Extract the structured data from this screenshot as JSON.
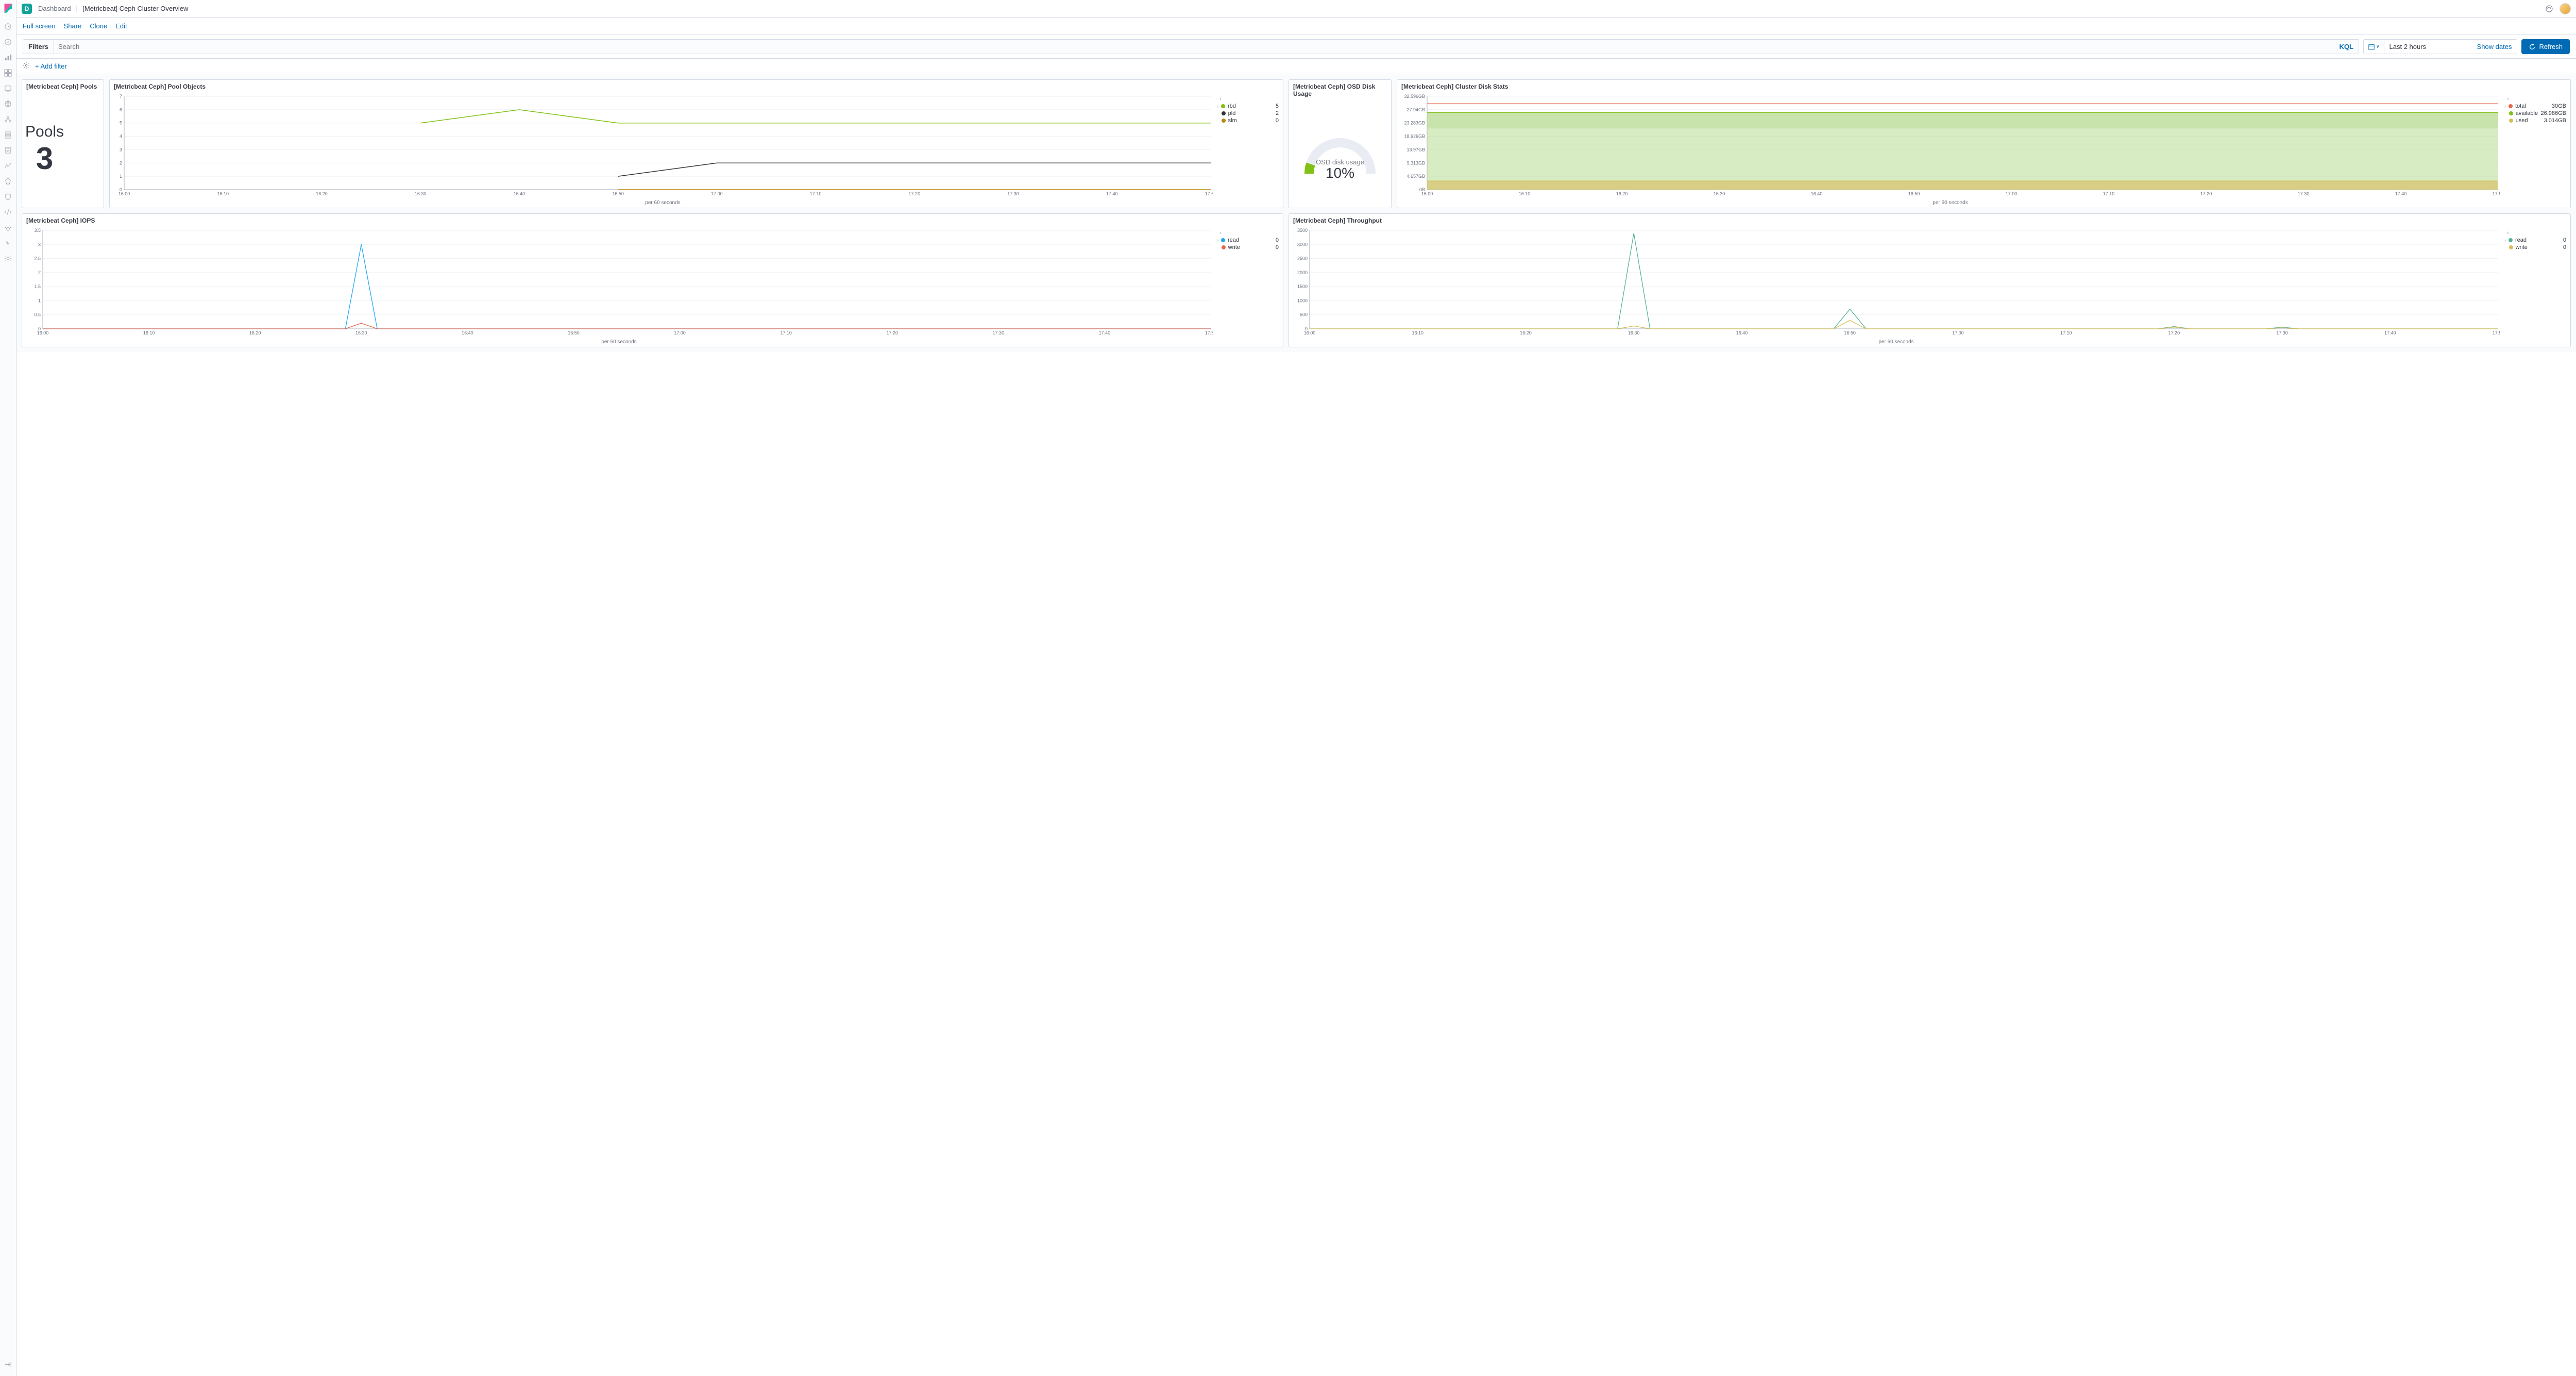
{
  "header": {
    "space_initial": "D",
    "breadcrumb_root": "Dashboard",
    "breadcrumb_current": "[Metricbeat] Ceph Cluster Overview"
  },
  "toolbar": {
    "fullscreen": "Full screen",
    "share": "Share",
    "clone": "Clone",
    "edit": "Edit"
  },
  "querybar": {
    "filters_label": "Filters",
    "placeholder": "Search",
    "kql": "KQL",
    "time_range": "Last 2 hours",
    "show_dates": "Show dates",
    "refresh": "Refresh"
  },
  "filterbar": {
    "add_filter": "+ Add filter"
  },
  "colors": {
    "accent": "#006bb4",
    "series_green": "#81c014",
    "series_dark": "#333333",
    "series_gold": "#b8860b",
    "series_blue": "#1ba9f5",
    "series_red": "#e7664c",
    "series_teal": "#54b399",
    "grid": "#eef2f7",
    "axis": "#a6adbb",
    "text_muted": "#69707d",
    "area_green": "#b8dd93",
    "area_amber": "#d9c776"
  },
  "shared_x": {
    "labels": [
      "16:00",
      "16:10",
      "16:20",
      "16:30",
      "16:40",
      "16:50",
      "17:00",
      "17:10",
      "17:20",
      "17:30",
      "17:40",
      "17:50"
    ],
    "interval_label": "per 60 seconds",
    "xmin": 0,
    "xmax": 11
  },
  "panel_pools": {
    "title": "[Metricbeat Ceph] Pools",
    "metric_label": "Pools",
    "metric_value": "3"
  },
  "panel_pool_objects": {
    "title": "[Metricbeat Ceph] Pool Objects",
    "ylim": [
      0,
      7
    ],
    "yticks": [
      0,
      1,
      2,
      3,
      4,
      5,
      6,
      7
    ],
    "legend": [
      {
        "name": "rbd",
        "value": "5",
        "color": "#81c014"
      },
      {
        "name": "pld",
        "value": "2",
        "color": "#333333"
      },
      {
        "name": "slm",
        "value": "0",
        "color": "#b8860b"
      }
    ],
    "series": {
      "rbd": [
        null,
        null,
        null,
        5,
        6,
        5,
        5,
        5,
        5,
        5,
        5,
        5
      ],
      "pld": [
        null,
        null,
        null,
        null,
        null,
        1,
        2,
        2,
        2,
        2,
        2,
        2
      ],
      "slm": [
        null,
        null,
        null,
        null,
        null,
        0,
        0,
        0,
        0,
        0,
        0,
        0
      ]
    }
  },
  "panel_osd": {
    "title": "[Metricbeat Ceph] OSD Disk Usage",
    "gauge_label": "OSD disk usage",
    "gauge_value": "10%",
    "gauge_pct": 10,
    "gauge_color": "#81c014",
    "gauge_track": "#e9edf3"
  },
  "panel_cluster_disk": {
    "title": "[Metricbeat Ceph] Cluster Disk Stats",
    "yticks": [
      "0B",
      "4.657GB",
      "9.313GB",
      "13.97GB",
      "18.626GB",
      "23.283GB",
      "27.94GB",
      "32.596GB"
    ],
    "legend": [
      {
        "name": "total",
        "value": "30GB",
        "color": "#e7664c"
      },
      {
        "name": "available",
        "value": "26.986GB",
        "color": "#81c014"
      },
      {
        "name": "used",
        "value": "3.014GB",
        "color": "#d6bf57"
      }
    ],
    "values": {
      "total": 30,
      "available": 26.986,
      "used": 3.014
    },
    "ymax_gb": 32.596
  },
  "panel_iops": {
    "title": "[Metricbeat Ceph] IOPS",
    "ylim": [
      0,
      3.5
    ],
    "yticks": [
      0,
      0.5,
      1,
      1.5,
      2,
      2.5,
      3,
      3.5
    ],
    "legend": [
      {
        "name": "read",
        "value": "0",
        "color": "#1ba9f5"
      },
      {
        "name": "write",
        "value": "0",
        "color": "#e7664c"
      }
    ],
    "series": {
      "read": [
        0,
        0,
        0,
        3,
        0,
        0,
        0,
        0,
        0,
        0,
        0,
        0
      ],
      "write": [
        0,
        0,
        0,
        0.2,
        0,
        0,
        0,
        0,
        0,
        0,
        0,
        0
      ]
    },
    "spike_x": 2.7
  },
  "panel_throughput": {
    "title": "[Metricbeat Ceph] Throughput",
    "ylim": [
      0,
      3500
    ],
    "yticks": [
      0,
      500,
      1000,
      1500,
      2000,
      2500,
      3000,
      3500
    ],
    "legend": [
      {
        "name": "read",
        "value": "0",
        "color": "#54b399"
      },
      {
        "name": "write",
        "value": "0",
        "color": "#d6bf57"
      }
    ],
    "series": {
      "read": [
        0,
        0,
        0,
        3400,
        0,
        700,
        0,
        0,
        80,
        60,
        0,
        0
      ],
      "write": [
        0,
        0,
        0,
        100,
        0,
        300,
        0,
        0,
        60,
        40,
        0,
        0
      ]
    },
    "spike_x": 2.9
  }
}
